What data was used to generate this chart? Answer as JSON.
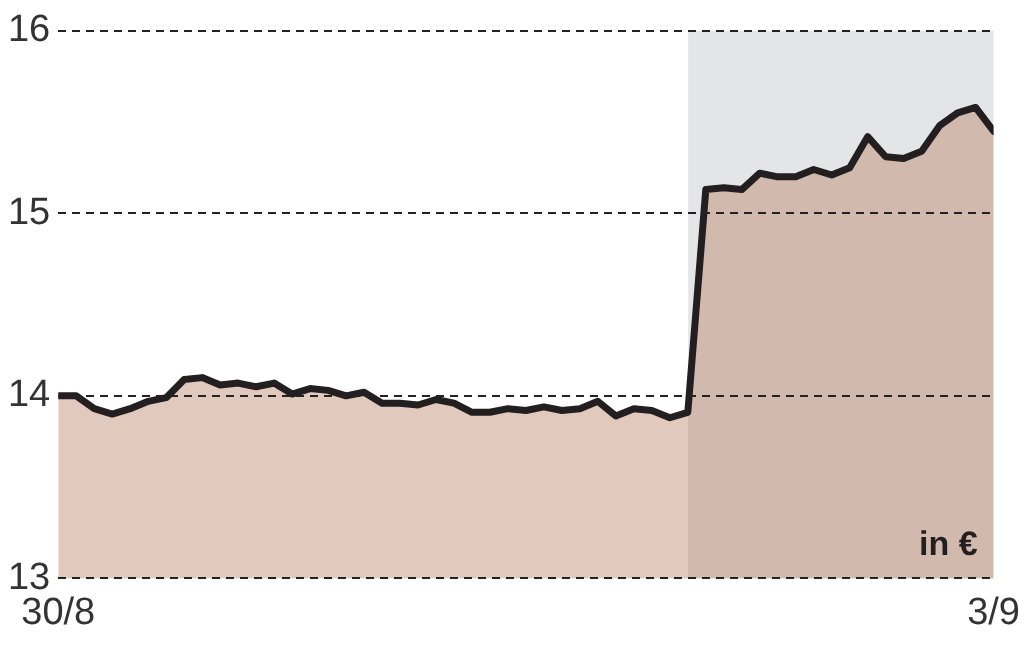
{
  "chart_data": {
    "type": "area",
    "categories": [
      "30/8",
      null,
      null,
      null,
      null,
      null,
      null,
      null,
      null,
      null,
      null,
      null,
      null,
      null,
      null,
      null,
      null,
      null,
      null,
      null,
      null,
      null,
      null,
      null,
      null,
      null,
      null,
      null,
      null,
      null,
      null,
      null,
      null,
      null,
      null,
      null,
      null,
      null,
      null,
      null,
      null,
      null,
      null,
      null,
      null,
      null,
      null,
      null,
      null,
      null,
      null,
      null,
      "3/9"
    ],
    "series": [
      {
        "color": "#231f20",
        "values": [
          14.0,
          14.0,
          13.93,
          13.9,
          13.93,
          13.97,
          13.99,
          14.09,
          14.1,
          14.06,
          14.07,
          14.05,
          14.07,
          14.01,
          14.04,
          14.03,
          14.0,
          14.02,
          13.96,
          13.96,
          13.95,
          13.98,
          13.96,
          13.91,
          13.91,
          13.93,
          13.92,
          13.94,
          13.92,
          13.93,
          13.97,
          13.89,
          13.93,
          13.92,
          13.88,
          13.91,
          15.13,
          15.14,
          15.13,
          15.22,
          15.2,
          15.2,
          15.24,
          15.21,
          15.25,
          15.42,
          15.31,
          15.3,
          15.34,
          15.48,
          15.55,
          15.58,
          15.45
        ]
      }
    ],
    "ylim": [
      13,
      16
    ],
    "yticks": [
      13,
      14,
      15,
      16
    ],
    "annotations": [
      "in €"
    ],
    "grid": "y",
    "legend": false,
    "marker": "none",
    "line_style": "solid"
  }
}
